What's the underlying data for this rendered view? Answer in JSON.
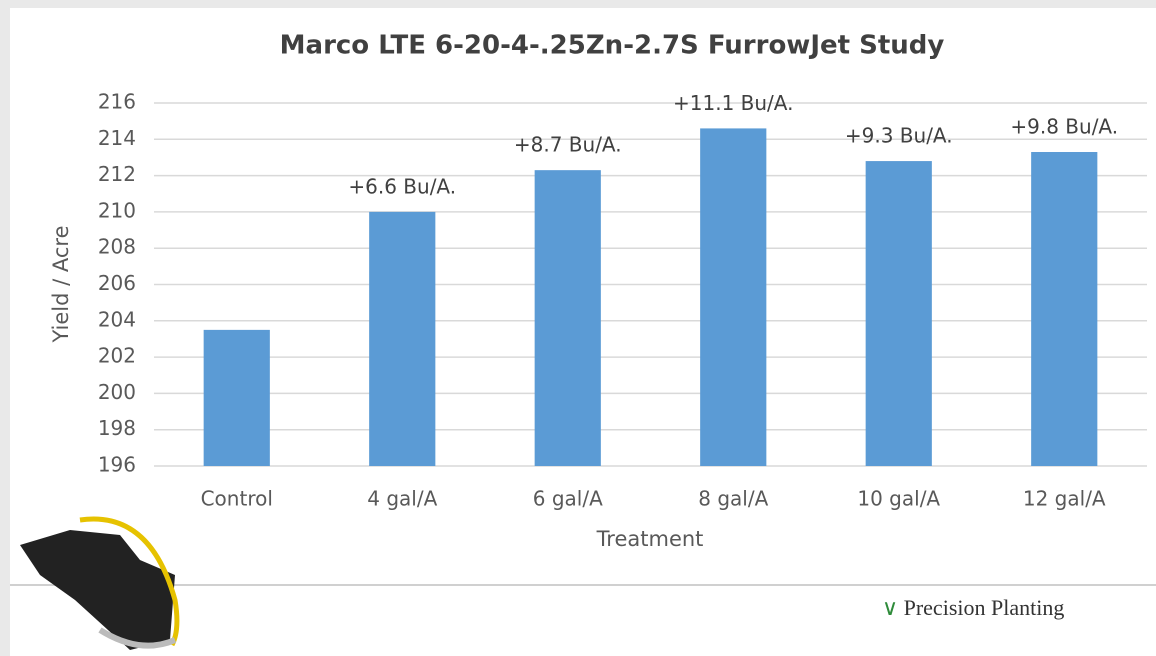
{
  "chart_data": {
    "type": "bar",
    "title": "Marco LTE 6-20-4-.25Zn-2.7S FurrowJet Study",
    "x_label": "Treatment",
    "y_label": "Yield / Acre",
    "categories": [
      "Control",
      "4 gal/A",
      "6 gal/A",
      "8 gal/A",
      "10 gal/A",
      "12 gal/A"
    ],
    "values": [
      203.5,
      210.0,
      212.3,
      214.6,
      212.8,
      213.3
    ],
    "annotations": [
      null,
      "+6.6 Bu/A.",
      "+8.7 Bu/A.",
      "+11.1 Bu/A.",
      "+9.3 Bu/A.",
      "+9.8 Bu/A."
    ],
    "color": "#5b9bd5",
    "ylim": [
      196,
      216
    ],
    "yticks": [
      196,
      198,
      200,
      202,
      204,
      206,
      208,
      210,
      212,
      214,
      216
    ],
    "grid": true
  },
  "footer": {
    "logo": "Precision Planting"
  }
}
